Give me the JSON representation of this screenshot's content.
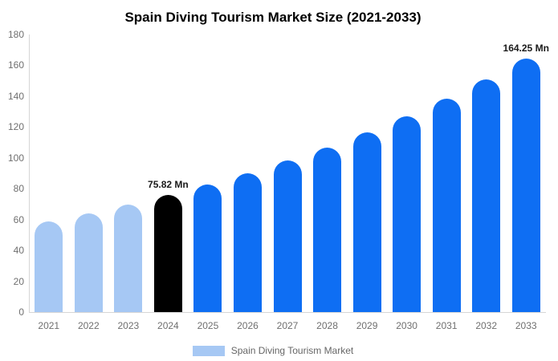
{
  "chart_data": {
    "type": "bar",
    "title": "Spain Diving Tourism Market Size (2021-2033)",
    "categories": [
      "2021",
      "2022",
      "2023",
      "2024",
      "2025",
      "2026",
      "2027",
      "2028",
      "2029",
      "2030",
      "2031",
      "2032",
      "2033"
    ],
    "values": [
      58.6,
      63.9,
      69.6,
      75.82,
      82.6,
      90.0,
      98.1,
      106.9,
      116.5,
      127.0,
      138.3,
      150.7,
      164.25
    ],
    "unit": "Mn",
    "roles": [
      "past",
      "past",
      "past",
      "highlight",
      "forecast",
      "forecast",
      "forecast",
      "forecast",
      "forecast",
      "forecast",
      "forecast",
      "forecast",
      "forecast"
    ],
    "colors": {
      "past": "#A6C8F4",
      "highlight": "#000000",
      "forecast": "#0E6EF3",
      "axis_line": "#d6d6d6",
      "tick_text": "#6f6f6f"
    },
    "annotations": [
      {
        "category": "2024",
        "text": "75.82 Mn"
      },
      {
        "category": "2033",
        "text": "164.25 Mn"
      }
    ],
    "xlabel": "",
    "ylabel": "",
    "ylim": [
      0,
      180
    ],
    "ytick_step": 20,
    "grid": false,
    "legend": {
      "label": "Spain Diving Tourism Market",
      "position": "bottom"
    }
  }
}
